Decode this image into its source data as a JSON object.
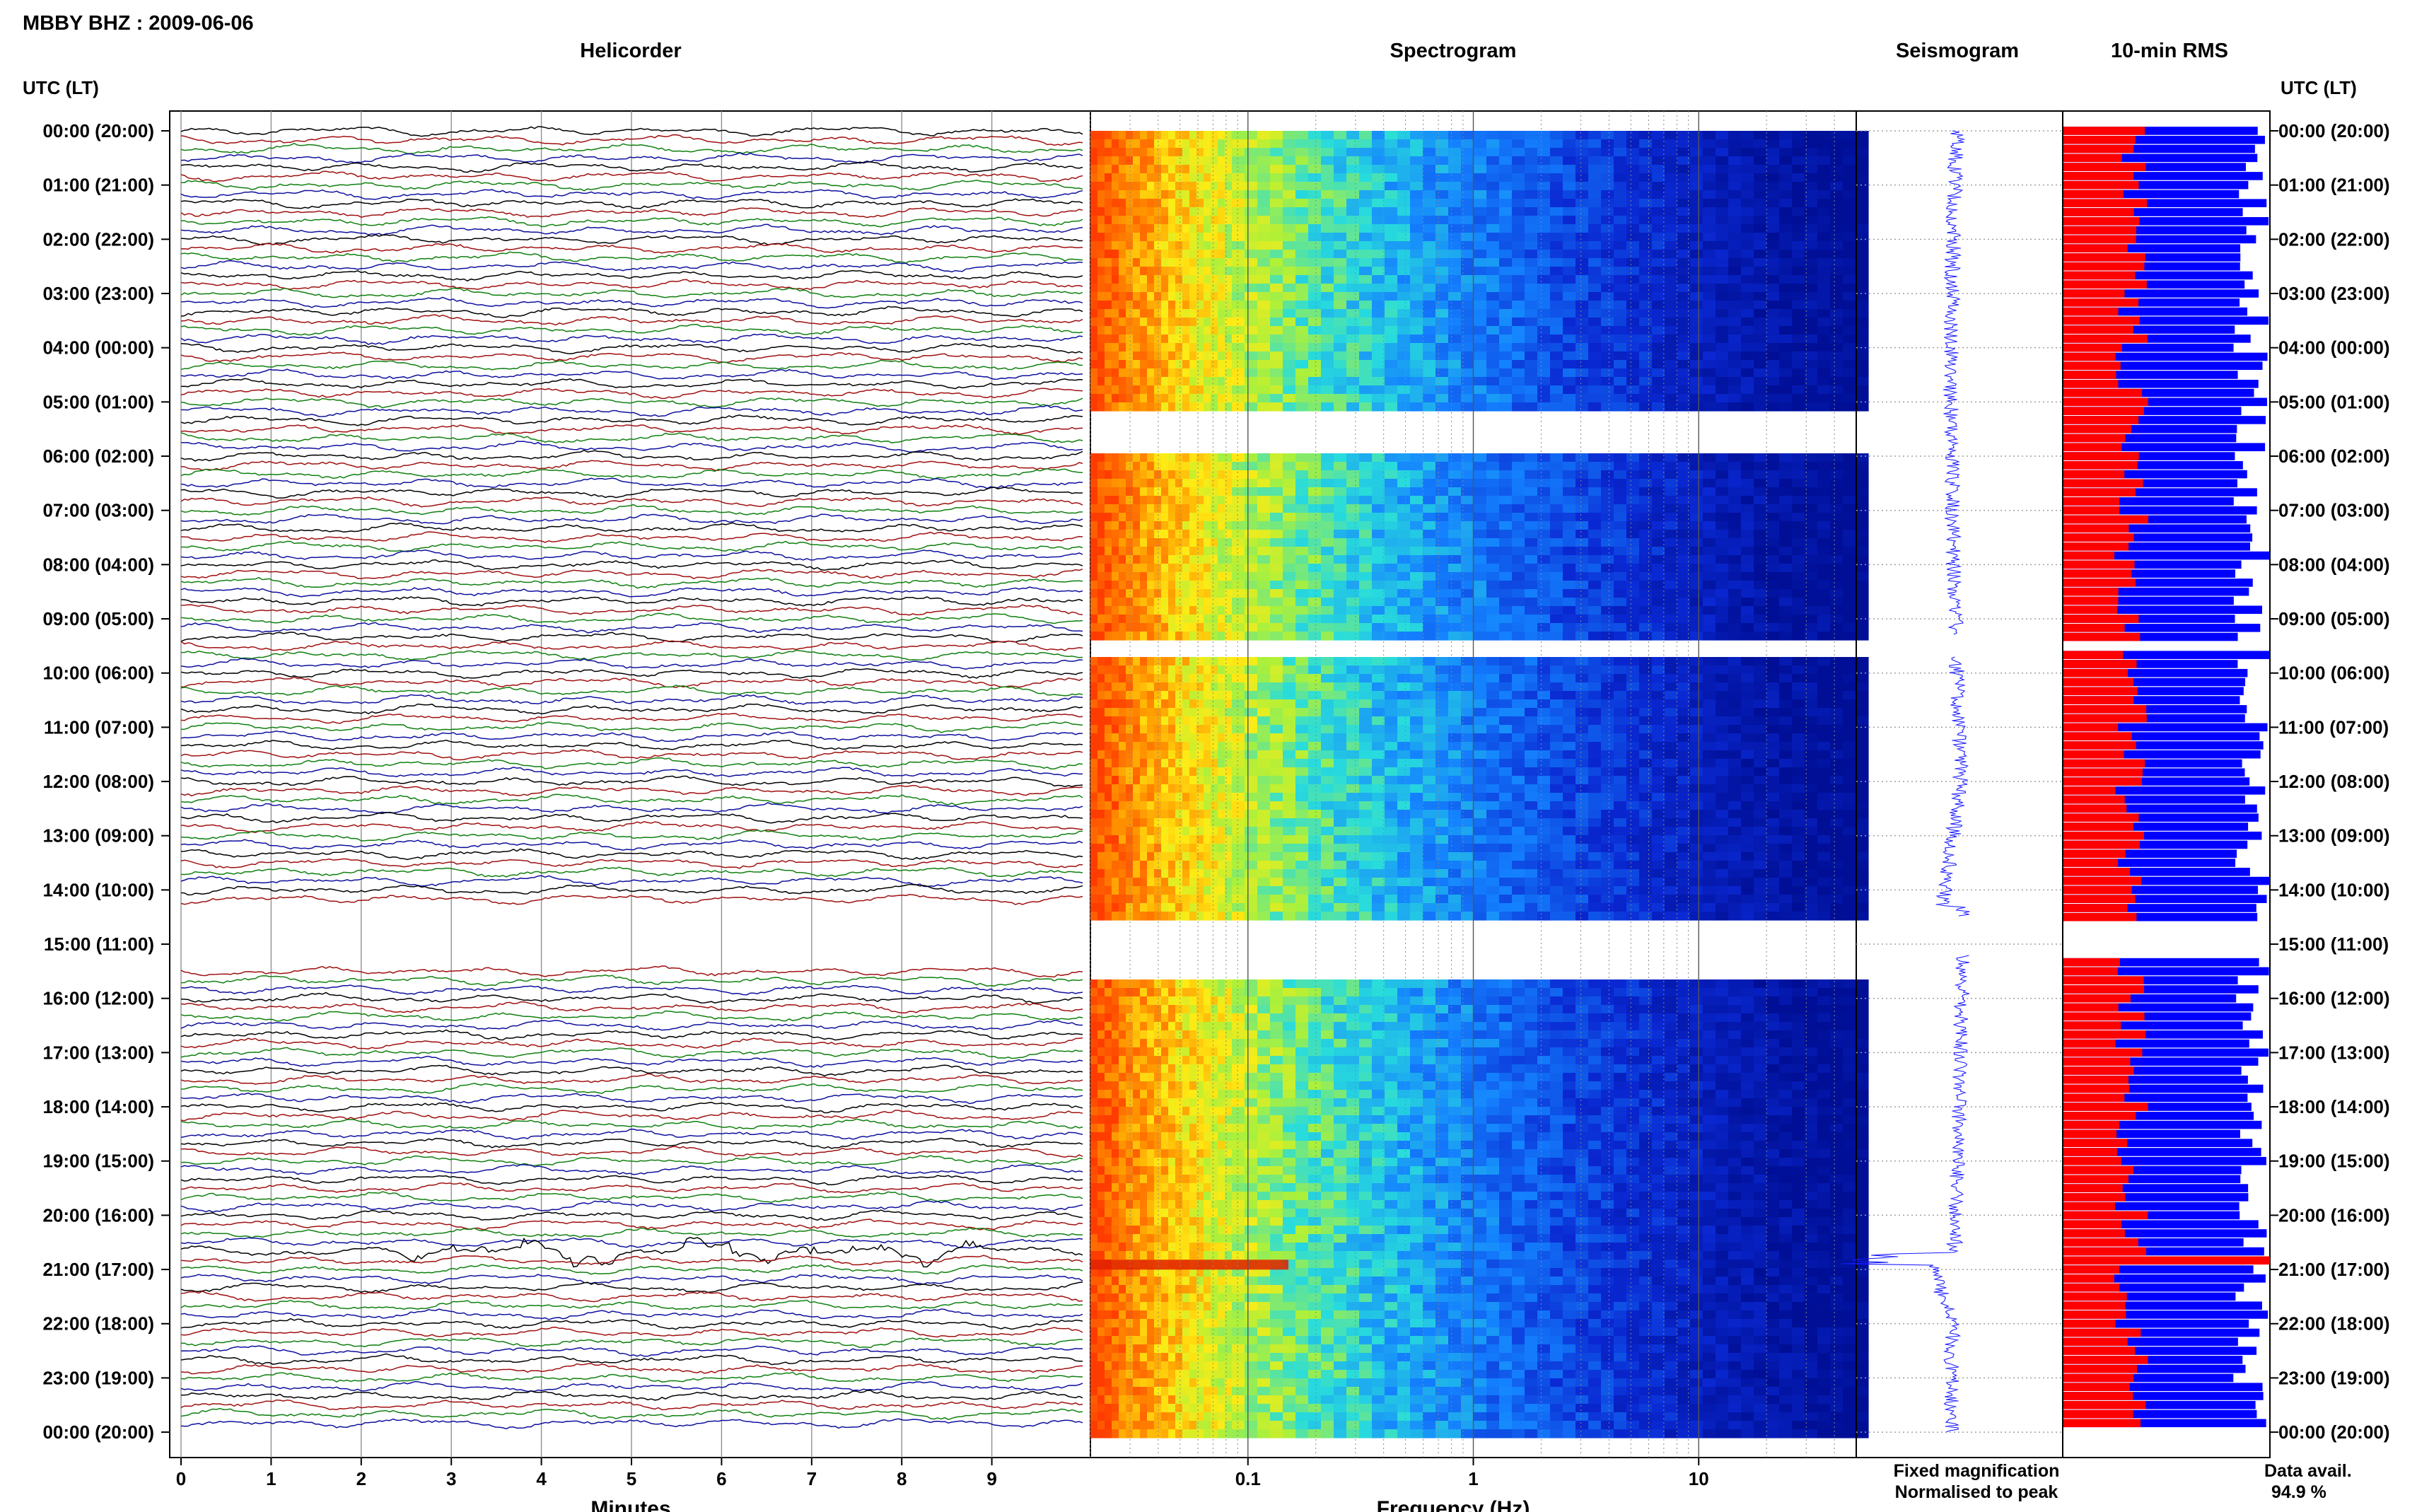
{
  "station_title": "MBBY BHZ : 2009-06-06",
  "utc_header": "UTC (LT)",
  "panels": {
    "helicorder": "Helicorder",
    "spectrogram": "Spectrogram",
    "seismogram": "Seismogram",
    "rms": "10-min RMS"
  },
  "colors": {
    "trace_black": "#000000",
    "trace_red": "#a01010",
    "trace_green": "#108010",
    "trace_blue": "#1010a0",
    "seismogram": "#1818ff",
    "rms_fixed": "#0000ff",
    "rms_normalised": "#ff0000",
    "grid": "#909090"
  },
  "legend": {
    "fixed": "Fixed magnification",
    "normalised": "Normalised to peak"
  },
  "availability": {
    "label": "Data avail.",
    "value": "94.9 %"
  },
  "chart_data": [
    {
      "type": "line",
      "title": "Helicorder",
      "xlabel": "Minutes",
      "x_ticks": [
        "0",
        "1",
        "2",
        "3",
        "4",
        "5",
        "6",
        "7",
        "8",
        "9"
      ],
      "xlim": [
        0,
        10
      ],
      "y_labels": [
        "00:00 (20:00)",
        "01:00 (21:00)",
        "02:00 (22:00)",
        "03:00 (23:00)",
        "04:00 (00:00)",
        "05:00 (01:00)",
        "06:00 (02:00)",
        "07:00 (03:00)",
        "08:00 (04:00)",
        "09:00 (05:00)",
        "10:00 (06:00)",
        "11:00 (07:00)",
        "12:00 (08:00)",
        "13:00 (09:00)",
        "14:00 (10:00)",
        "15:00 (11:00)",
        "16:00 (12:00)",
        "17:00 (13:00)",
        "18:00 (14:00)",
        "19:00 (15:00)",
        "20:00 (16:00)",
        "21:00 (17:00)",
        "22:00 (18:00)",
        "23:00 (19:00)",
        "00:00 (20:00)"
      ],
      "traces_per_hour": 6,
      "trace_color_cycle": [
        "black",
        "red",
        "green",
        "blue"
      ],
      "gaps_utc_hours": [
        [
          14.3,
          15.35
        ]
      ],
      "events": [
        {
          "label": "",
          "start_hour": 20.55,
          "end_hour": 20.8
        }
      ]
    },
    {
      "type": "heatmap",
      "title": "Spectrogram",
      "xlabel": "Frequency (Hz)",
      "x_scale": "log",
      "x_ticks": [
        "0.1",
        "1",
        "10"
      ],
      "xlim": [
        0.02,
        50
      ],
      "gaps_utc_hours": [
        [
          5.1,
          5.9
        ],
        [
          9.3,
          9.7
        ],
        [
          14.5,
          15.5
        ]
      ]
    },
    {
      "type": "line",
      "title": "Seismogram",
      "gaps_utc_hours": [
        [
          9.3,
          9.7
        ],
        [
          14.5,
          15.2
        ]
      ]
    },
    {
      "type": "bar",
      "title": "10-min RMS",
      "series": [
        {
          "name": "Fixed magnification",
          "color": "#0000ff"
        },
        {
          "name": "Normalised to peak",
          "color": "#ff0000"
        }
      ]
    }
  ]
}
